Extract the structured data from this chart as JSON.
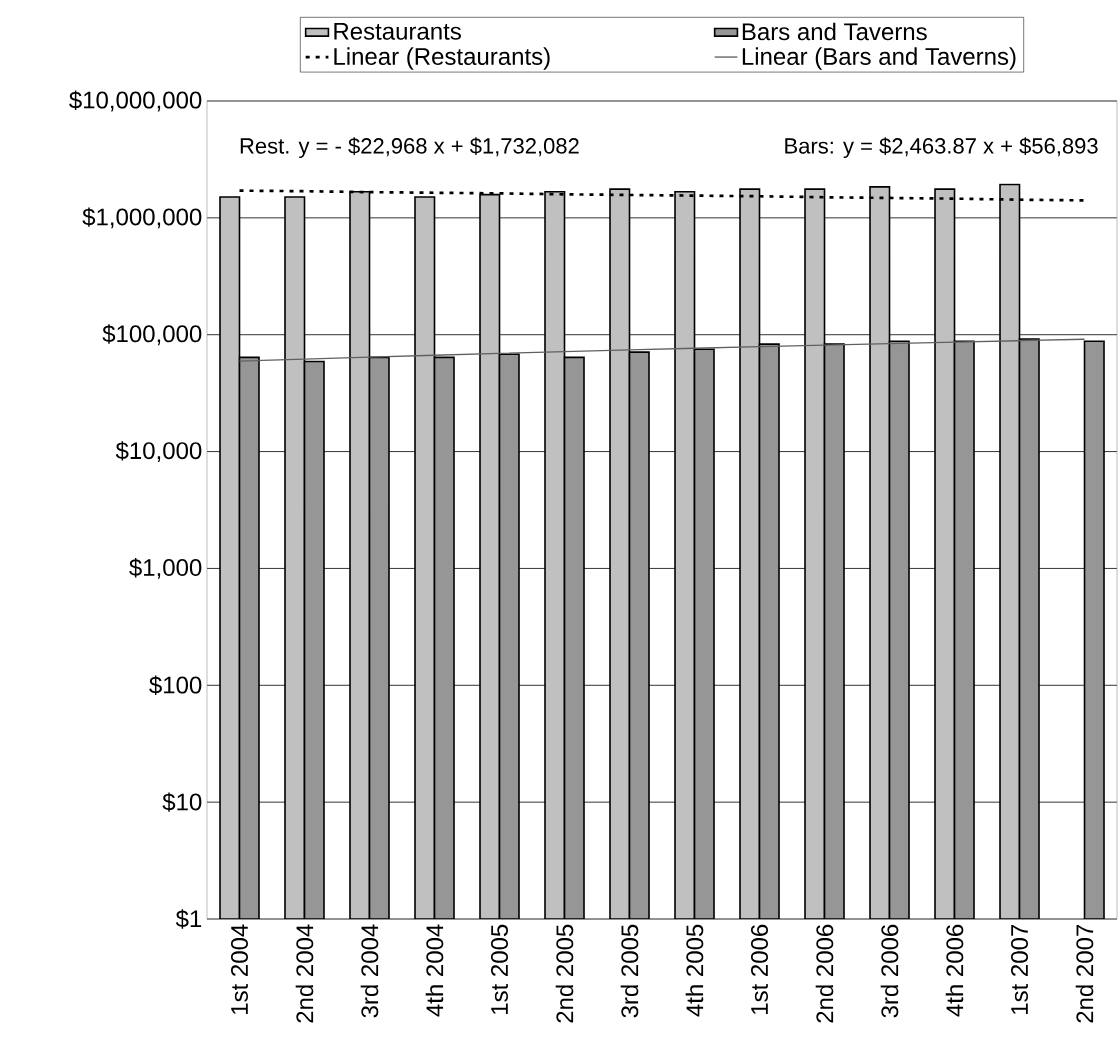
{
  "chart_data": {
    "type": "bar",
    "categories": [
      "1st 2004",
      "2nd 2004",
      "3rd 2004",
      "4th 2004",
      "1st 2005",
      "2nd 2005",
      "3rd 2005",
      "4th 2005",
      "1st 2006",
      "2nd 2006",
      "3rd 2006",
      "4th 2006",
      "1st 2007",
      "2nd 2007"
    ],
    "series": [
      {
        "name": "Restaurants",
        "color": "#c0c0c0",
        "values": [
          1510000,
          1510000,
          1670000,
          1510000,
          1580000,
          1670000,
          1760000,
          1670000,
          1760000,
          1760000,
          1840000,
          1760000,
          1930000,
          null
        ]
      },
      {
        "name": "Bars and Taverns",
        "color": "#969696",
        "values": [
          64000,
          59000,
          64000,
          64000,
          68000,
          64000,
          71000,
          75000,
          83000,
          83000,
          88000,
          88000,
          92000,
          88000
        ]
      },
      {
        "name": "Linear (Restaurants)",
        "type": "line",
        "line_style": "dotted",
        "color": "#000000",
        "values": [
          1710000,
          1690000,
          1660000,
          1640000,
          1620000,
          1590000,
          1570000,
          1550000,
          1530000,
          1500000,
          1480000,
          1460000,
          1430000,
          1410000
        ]
      },
      {
        "name": "Linear (Bars and Taverns)",
        "type": "line",
        "line_style": "solid",
        "color": "#606060",
        "values": [
          59400,
          61800,
          64300,
          66700,
          69200,
          71700,
          74100,
          76600,
          79100,
          81500,
          84000,
          86500,
          88900,
          91400
        ]
      }
    ],
    "log": true,
    "ylim": [
      1,
      10000000
    ],
    "yticks": [
      {
        "value": 1,
        "label": "$1"
      },
      {
        "value": 10,
        "label": "$10"
      },
      {
        "value": 100,
        "label": "$100"
      },
      {
        "value": 1000,
        "label": "$1,000"
      },
      {
        "value": 10000,
        "label": "$10,000"
      },
      {
        "value": 100000,
        "label": "$100,000"
      },
      {
        "value": 1000000,
        "label": "$1,000,000"
      },
      {
        "value": 10000000,
        "label": "$10,000,000"
      }
    ],
    "grid": "y",
    "legend": "top",
    "annotations": [
      "Rest. y = - $22,968 x +  $1,732,082",
      "Bars: y =  $2,463.87 x +  $56,893"
    ]
  }
}
